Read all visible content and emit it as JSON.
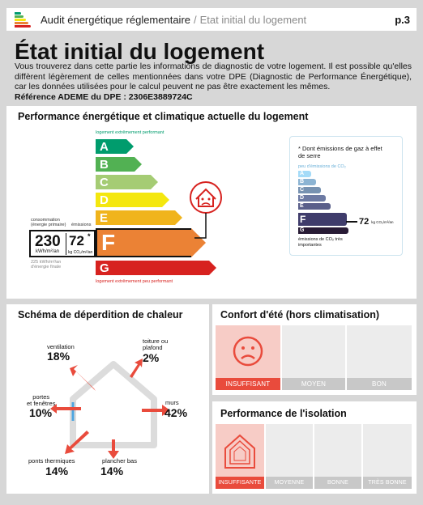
{
  "header": {
    "title": "Audit énergétique réglementaire",
    "separator": "/",
    "subtitle": "Etat initial du logement",
    "page": "p.3"
  },
  "page_title": "État initial du logement",
  "intro": {
    "text": "Vous trouverez dans cette partie les informations de diagnostic de votre logement. Il est possible qu'elles diffèrent légèrement de celles mentionnées dans votre DPE (Diagnostic de Performance Énergétique), car les données utilisées pour le calcul peuvent ne pas être exactement les mêmes.",
    "reference": "Référence ADEME du DPE : 2306E3889724C"
  },
  "performance": {
    "title": "Performance énergétique et climatique actuelle du logement",
    "top_note": "logement extrêmement performant",
    "bottom_note": "logement extrêmement peu performant",
    "classes": [
      "A",
      "B",
      "C",
      "D",
      "E",
      "F",
      "G"
    ],
    "current_class": "F",
    "consumption_header": "consommation\n(énergie primaire)",
    "emissions_header": "émissions",
    "consumption_value": "230",
    "consumption_unit": "kWh/m²/an",
    "emissions_value": "72",
    "emissions_star": "*",
    "emissions_unit": "kg CO₂/m²/an",
    "final_energy": "225 kWh/m²/an\nd'énergie finale",
    "colors": {
      "A": "#009c6d",
      "B": "#52b153",
      "C": "#a5cc74",
      "D": "#f4e70f",
      "E": "#f0b41c",
      "F": "#eb8235",
      "G": "#d7221f"
    }
  },
  "ges": {
    "note": "* Dont émissions de gaz à effet de serre",
    "top_note": "peu d'émissions de CO₂",
    "bottom_note": "émissions de CO₂ très importantes",
    "current_class": "F",
    "value": "72",
    "unit": "kg CO₂/m²/an",
    "classes": [
      "A",
      "B",
      "C",
      "D",
      "E",
      "F",
      "G"
    ],
    "colors": {
      "A": "#a4dbf8",
      "B": "#8cb4d3",
      "C": "#7792b1",
      "D": "#6d7aa3",
      "E": "#5a5f8a",
      "F": "#3f3c6b",
      "G": "#281b35"
    }
  },
  "deperdition": {
    "title": "Schéma de déperdition de chaleur",
    "items": [
      {
        "label": "ventilation",
        "value": "18%"
      },
      {
        "label": "toiture ou\nplafond",
        "value": "2%"
      },
      {
        "label": "portes\net fenêtres",
        "value": "10%"
      },
      {
        "label": "murs",
        "value": "42%"
      },
      {
        "label": "ponts thermiques",
        "value": "14%"
      },
      {
        "label": "plancher bas",
        "value": "14%"
      }
    ]
  },
  "confort": {
    "title": "Confort d'été (hors climatisation)",
    "levels": [
      "INSUFFISANT",
      "MOYEN",
      "BON"
    ],
    "active": 0
  },
  "isolation": {
    "title": "Performance de l'isolation",
    "levels": [
      "INSUFFISANTE",
      "MOYENNE",
      "BONNE",
      "TRÈS BONNE"
    ],
    "active": 0
  }
}
